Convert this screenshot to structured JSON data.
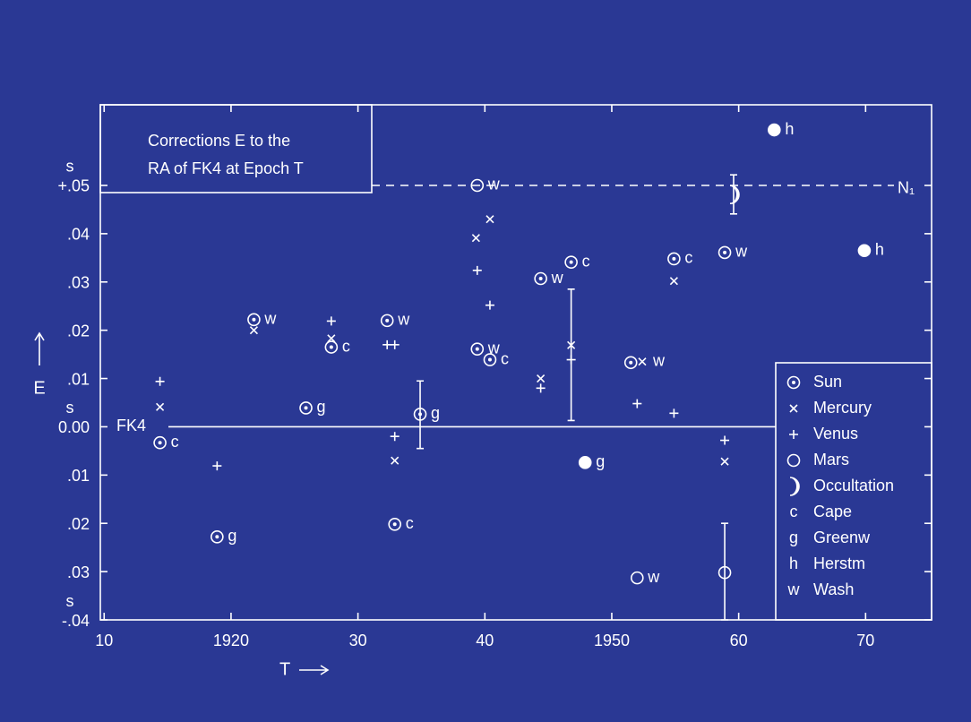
{
  "chart_data": {
    "type": "scatter",
    "title": [
      "Corrections E to the",
      "RA of FK4 at Epoch T"
    ],
    "x_label": "T",
    "y_label": "E",
    "y_unit": "s",
    "xlim": [
      1909.7,
      1975.2
    ],
    "ylim": [
      -0.04,
      0.0667
    ],
    "xticks": [
      {
        "value": 1910,
        "label": "10"
      },
      1920,
      {
        "value": 1930,
        "label": "30"
      },
      {
        "value": 1940,
        "label": "40"
      },
      1950,
      {
        "value": 1960,
        "label": "60"
      },
      {
        "value": 1970,
        "label": "70"
      }
    ],
    "yticks": [
      {
        "value": 0.05,
        "label": "+.05"
      },
      {
        "value": 0.04,
        "label": ".04"
      },
      {
        "value": 0.03,
        "label": ".03"
      },
      {
        "value": 0.02,
        "label": ".02"
      },
      {
        "value": 0.01,
        "label": ".01"
      },
      {
        "value": 0,
        "label": "0.00"
      },
      {
        "value": -0.01,
        "label": ".01"
      },
      {
        "value": -0.02,
        "label": ".02"
      },
      {
        "value": -0.03,
        "label": ".03"
      },
      {
        "value": -0.04,
        "label": "-.04"
      }
    ],
    "grid": false,
    "color": "#ffffff",
    "reference_lines": [
      {
        "value": 0,
        "label": "FK4",
        "style": "solid"
      },
      {
        "value": 0.05,
        "label": "N₁",
        "style": "dashed"
      }
    ],
    "series": [
      {
        "name": "Sun",
        "marker": "sun",
        "x": [
          1914.4,
          1918.9,
          1921.8,
          1925.9,
          1927.9,
          1932.3,
          1932.9,
          1934.9,
          1939.4,
          1940.4,
          1944.4,
          1946.8,
          1951.5,
          1954.9,
          1958.9
        ],
        "values": [
          -0.0033,
          -0.0228,
          0.0222,
          0.0039,
          0.0165,
          0.022,
          -0.0202,
          0.0026,
          0.0161,
          0.0139,
          0.0307,
          0.0341,
          0.0133,
          0.0348,
          0.0361
        ],
        "labels": [
          "c",
          "g",
          "w",
          "g",
          "c",
          "w",
          "c",
          "g",
          "w",
          "c",
          "w",
          "c",
          null,
          "c",
          "w"
        ]
      },
      {
        "name": "Mercury",
        "marker": "mercury",
        "x": [
          1914.4,
          1921.8,
          1927.9,
          1932.9,
          1939.3,
          1940.4,
          1944.4,
          1946.8,
          1952.4,
          1954.9,
          1958.9
        ],
        "values": [
          0.0041,
          0.02,
          0.0183,
          -0.007,
          0.0391,
          0.043,
          0.01,
          0.0169,
          0.0135,
          0.0302,
          -0.0072
        ],
        "labels": [
          null,
          null,
          null,
          null,
          null,
          null,
          null,
          null,
          "w",
          null,
          null
        ]
      },
      {
        "name": "Venus",
        "marker": "venus",
        "x": [
          1914.4,
          1918.9,
          1927.9,
          1932.3,
          1932.9,
          1932.9,
          1939.4,
          1940.4,
          1944.4,
          1946.8,
          1952.0,
          1954.9,
          1958.9
        ],
        "values": [
          0.0094,
          -0.0081,
          0.0219,
          0.017,
          0.017,
          -0.002,
          0.0324,
          0.0252,
          0.008,
          0.0139,
          0.0048,
          0.0028,
          -0.0028
        ],
        "labels": [
          null,
          null,
          null,
          null,
          null,
          null,
          null,
          null,
          null,
          null,
          null,
          null,
          null
        ]
      },
      {
        "name": "Mars",
        "marker": "mars",
        "x": [
          1939.4,
          1952.0,
          1958.9
        ],
        "values": [
          0.05,
          -0.0313,
          -0.0302
        ],
        "labels": [
          "w",
          "w",
          null
        ]
      },
      {
        "name": "Occultation",
        "marker": "occultation",
        "x": [
          1959.6
        ],
        "values": [
          0.0481
        ],
        "labels": [
          null
        ]
      },
      {
        "marker": "dot",
        "x": [
          1962.8,
          1969.9,
          1947.9
        ],
        "values": [
          0.0615,
          0.0365,
          -0.0074
        ],
        "labels": [
          "h",
          "h",
          "g"
        ]
      }
    ],
    "error_bars": [
      {
        "x": 1934.9,
        "low": -0.0045,
        "high": 0.0095
      },
      {
        "x": 1946.8,
        "low": 0.0013,
        "high": 0.0285
      },
      {
        "x": 1959.6,
        "low": 0.0441,
        "high": 0.0522
      },
      {
        "x": 1958.9,
        "low": -0.04,
        "high": -0.02
      }
    ],
    "observatories": [
      {
        "code": "c",
        "name": "Cape"
      },
      {
        "code": "g",
        "name": "Greenw"
      },
      {
        "code": "h",
        "name": "Herstm"
      },
      {
        "code": "w",
        "name": "Wash"
      }
    ]
  }
}
